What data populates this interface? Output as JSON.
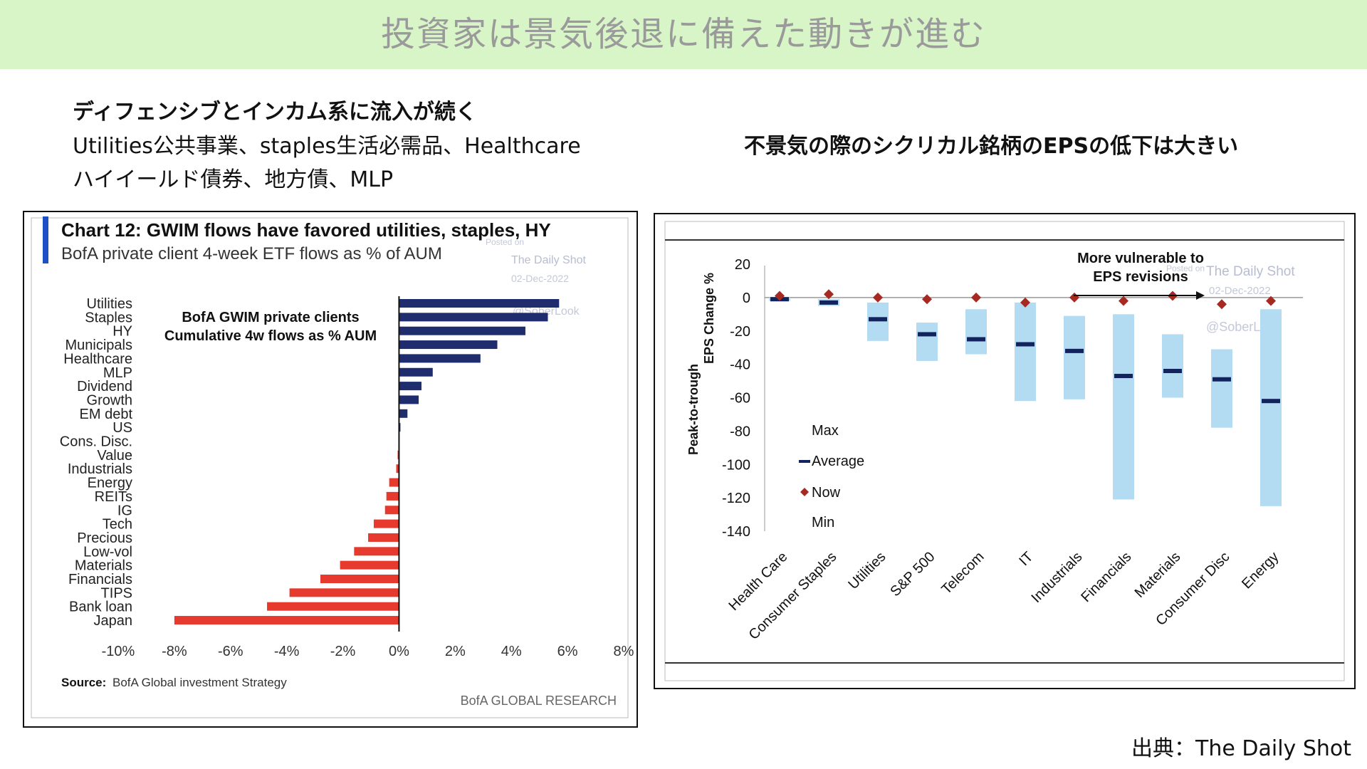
{
  "banner": {
    "title": "投資家は景気後退に備えた動きが進む"
  },
  "left_text": {
    "heading": "ディフェンシブとインカム系に流入が続く",
    "line1": "Utilities公共事業、staples生活必需品、Healthcare",
    "line2": "ハイイールド債券、地方債、MLP"
  },
  "right_text": {
    "heading": "不景気の際のシクリカル銘柄のEPSの低下は大きい"
  },
  "footer": {
    "source": "出典：The Daily Shot"
  },
  "colors": {
    "banner_bg": "#d8f5c8",
    "positive_bar": "#1f2d6e",
    "negative_bar": "#e63a2e",
    "range_bar": "#b3dcf3",
    "average_mark": "#13235e",
    "now_mark": "#a62a22"
  },
  "chart_data": [
    {
      "type": "bar",
      "orientation": "horizontal",
      "title": "Chart 12: GWIM flows have favored utilities, staples, HY",
      "subtitle": "BofA private client 4-week ETF flows as % of AUM",
      "annotation": "BofA GWIM private clients\nCumulative 4w flows as % AUM",
      "categories": [
        "Utilities",
        "Staples",
        "HY",
        "Municipals",
        "Healthcare",
        "MLP",
        "Dividend",
        "Growth",
        "EM debt",
        "US",
        "Cons. Disc.",
        "Value",
        "Industrials",
        "Energy",
        "REITs",
        "IG",
        "Tech",
        "Precious",
        "Low-vol",
        "Materials",
        "Financials",
        "TIPS",
        "Bank loan",
        "Japan"
      ],
      "values": [
        5.7,
        5.3,
        4.5,
        3.5,
        2.9,
        1.2,
        0.8,
        0.7,
        0.3,
        0.05,
        0.0,
        -0.05,
        -0.1,
        -0.35,
        -0.45,
        -0.5,
        -0.9,
        -1.1,
        -1.6,
        -2.1,
        -2.8,
        -3.9,
        -4.7,
        -8.0
      ],
      "xticks": [
        "-10%",
        "-8%",
        "-6%",
        "-4%",
        "-2%",
        "0%",
        "2%",
        "4%",
        "6%",
        "8%"
      ],
      "xlim": [
        -10,
        8
      ],
      "source_label": "Source:",
      "source_text": "BofA Global investment Strategy",
      "brand": "BofA GLOBAL RESEARCH",
      "watermark": {
        "posted": "Posted on",
        "site": "The Daily Shot",
        "date": "02-Dec-2022",
        "handle": "@SoberLook"
      }
    },
    {
      "type": "range",
      "ylabel": "Peak-to-trough\nEPS Change %",
      "ylim": [
        -140,
        20
      ],
      "yticks": [
        "20",
        "0",
        "-20",
        "-40",
        "-60",
        "-80",
        "-100",
        "-120",
        "-140"
      ],
      "categories": [
        "Health Care",
        "Consumer Staples",
        "Utilities",
        "S&P 500",
        "Telecom",
        "IT",
        "Industrials",
        "Financials",
        "Materials",
        "Consumer Disc",
        "Energy"
      ],
      "max": [
        0,
        -1,
        -3,
        -15,
        -7,
        -3,
        -11,
        -10,
        -22,
        -31,
        -7
      ],
      "min": [
        -2,
        -5,
        -26,
        -38,
        -34,
        -62,
        -61,
        -121,
        -60,
        -78,
        -125
      ],
      "average": [
        -1,
        -3,
        -13,
        -22,
        -25,
        -28,
        -32,
        -47,
        -44,
        -49,
        -62
      ],
      "now": [
        1,
        2,
        0,
        -1,
        0,
        -3,
        0,
        -2,
        1,
        -4,
        -2
      ],
      "legend": {
        "max": "Max",
        "average": "Average",
        "now": "Now",
        "min": "Min"
      },
      "annotation": "More vulnerable to\nEPS revisions",
      "watermark": {
        "posted": "Posted on",
        "site": "The Daily Shot",
        "date": "02-Dec-2022",
        "handle": "@SoberLook"
      }
    }
  ]
}
